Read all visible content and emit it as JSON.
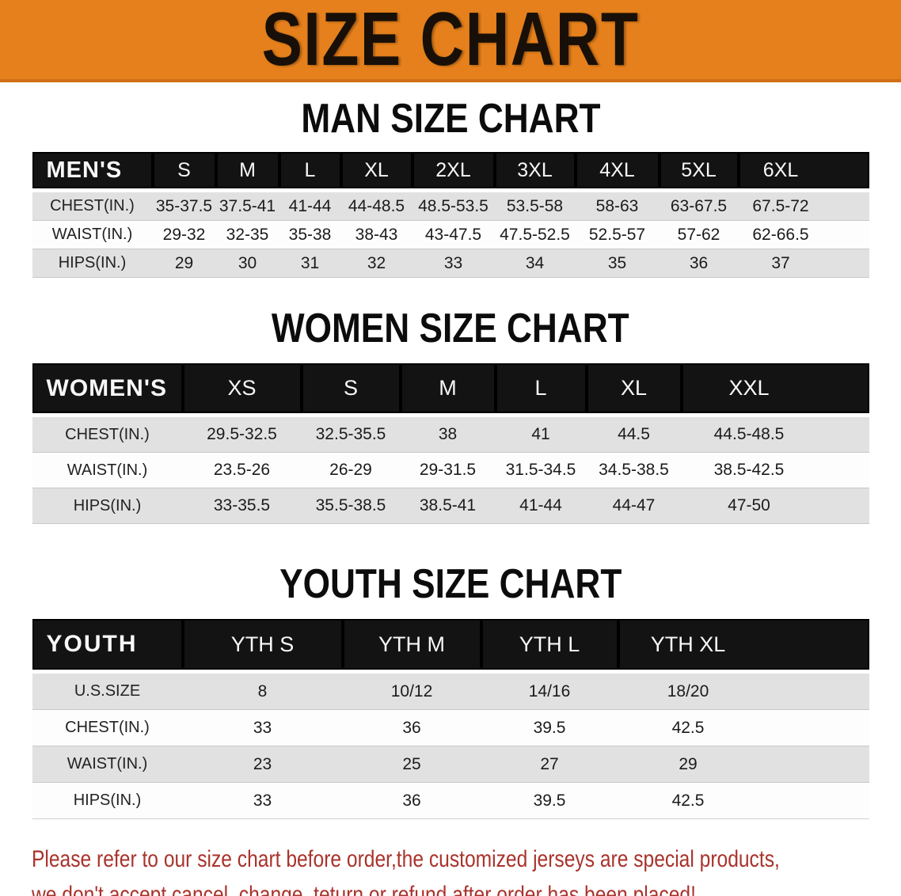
{
  "banner": {
    "title": "SIZE CHART"
  },
  "colors": {
    "banner_bg": "#e5801c",
    "header_bar": "#131313",
    "gray_row": "#e1e1e1",
    "note_red": "#a9332c"
  },
  "sections": [
    {
      "title": "MAN SIZE CHART",
      "header_label": "MEN'S",
      "columns": [
        "S",
        "M",
        "L",
        "XL",
        "2XL",
        "3XL",
        "4XL",
        "5XL",
        "6XL"
      ],
      "rows": [
        {
          "label": "CHEST(IN.)",
          "values": [
            "35-37.5",
            "37.5-41",
            "41-44",
            "44-48.5",
            "48.5-53.5",
            "53.5-58",
            "58-63",
            "63-67.5",
            "67.5-72"
          ]
        },
        {
          "label": "WAIST(IN.)",
          "values": [
            "29-32",
            "32-35",
            "35-38",
            "38-43",
            "43-47.5",
            "47.5-52.5",
            "52.5-57",
            "57-62",
            "62-66.5"
          ]
        },
        {
          "label": "HIPS(IN.)",
          "values": [
            "29",
            "30",
            "31",
            "32",
            "33",
            "34",
            "35",
            "36",
            "37"
          ]
        }
      ]
    },
    {
      "title": "WOMEN SIZE CHART",
      "header_label": "WOMEN'S",
      "columns": [
        "XS",
        "S",
        "M",
        "L",
        "XL",
        "XXL"
      ],
      "rows": [
        {
          "label": "CHEST(IN.)",
          "values": [
            "29.5-32.5",
            "32.5-35.5",
            "38",
            "41",
            "44.5",
            "44.5-48.5"
          ]
        },
        {
          "label": "WAIST(IN.)",
          "values": [
            "23.5-26",
            "26-29",
            "29-31.5",
            "31.5-34.5",
            "34.5-38.5",
            "38.5-42.5"
          ]
        },
        {
          "label": "HIPS(IN.)",
          "values": [
            "33-35.5",
            "35.5-38.5",
            "38.5-41",
            "41-44",
            "44-47",
            "47-50"
          ]
        }
      ]
    },
    {
      "title": "YOUTH SIZE CHART",
      "header_label": "YOUTH",
      "columns": [
        "YTH S",
        "YTH M",
        "YTH L",
        "YTH XL"
      ],
      "rows": [
        {
          "label": "U.S.SIZE",
          "values": [
            "8",
            "10/12",
            "14/16",
            "18/20"
          ]
        },
        {
          "label": "CHEST(IN.)",
          "values": [
            "33",
            "36",
            "39.5",
            "42.5"
          ]
        },
        {
          "label": "WAIST(IN.)",
          "values": [
            "23",
            "25",
            "27",
            "29"
          ]
        },
        {
          "label": "HIPS(IN.)",
          "values": [
            "33",
            "36",
            "39.5",
            "42.5"
          ]
        }
      ]
    }
  ],
  "disclaimer": {
    "line1": "Please refer to our size chart before order,the customized jerseys are special products,",
    "line2": "we don't accept cancel, change, teturn or refund after order has been placed!"
  }
}
